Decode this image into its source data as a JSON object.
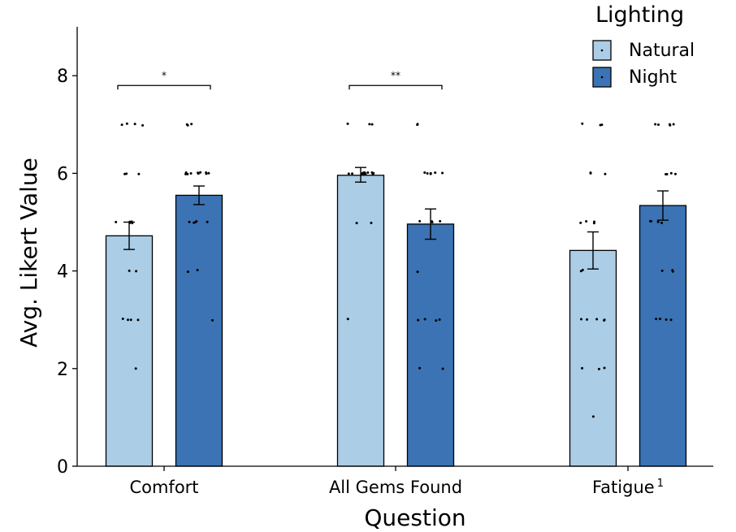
{
  "chart_data": {
    "type": "bar",
    "title": "",
    "xlabel": "Question",
    "ylabel": "Avg. Likert Value",
    "ylim": [
      0,
      9
    ],
    "yticks": [
      0,
      2,
      4,
      6,
      8
    ],
    "categories": [
      {
        "name": "Comfort",
        "sup": ""
      },
      {
        "name": "All Gems Found",
        "sup": ""
      },
      {
        "name": "Fatigue",
        "sup": "1"
      }
    ],
    "legend": {
      "title": "Lighting",
      "position": "top-right"
    },
    "series": [
      {
        "name": "Natural",
        "color": "#abcde6",
        "values": [
          4.72,
          5.96,
          4.42
        ],
        "errors": [
          [
            4.44,
            5.0
          ],
          [
            5.82,
            6.12
          ],
          [
            4.04,
            4.8
          ]
        ],
        "points": [
          [
            2,
            3,
            3,
            3,
            3,
            4,
            4,
            5,
            5,
            5,
            5,
            5,
            6,
            6,
            6,
            7,
            7,
            7,
            7
          ],
          [
            3,
            5,
            5,
            6,
            6,
            6,
            6,
            6,
            6,
            6,
            6,
            6,
            6,
            6,
            6,
            7,
            7,
            7
          ],
          [
            1,
            2,
            2,
            2,
            3,
            3,
            3,
            3,
            3,
            4,
            4,
            5,
            5,
            5,
            5,
            6,
            6,
            6,
            7,
            7,
            7
          ]
        ]
      },
      {
        "name": "Night",
        "color": "#3b73b4",
        "values": [
          5.55,
          4.96,
          5.34
        ],
        "errors": [
          [
            5.36,
            5.74
          ],
          [
            4.65,
            5.27
          ],
          [
            5.04,
            5.64
          ]
        ],
        "points": [
          [
            3,
            4,
            4,
            5,
            5,
            5,
            5,
            5,
            6,
            6,
            6,
            6,
            6,
            6,
            6,
            6,
            6,
            6,
            7,
            7,
            7
          ],
          [
            2,
            2,
            3,
            3,
            3,
            3,
            4,
            5,
            5,
            5,
            5,
            6,
            6,
            6,
            6,
            6,
            6,
            7,
            7
          ],
          [
            3,
            3,
            3,
            3,
            4,
            4,
            4,
            5,
            5,
            5,
            5,
            6,
            6,
            6,
            6,
            7,
            7,
            7,
            7,
            7
          ]
        ]
      }
    ],
    "significance": [
      {
        "category": "Comfort",
        "label": "*",
        "y": 7.8
      },
      {
        "category": "All Gems Found",
        "label": "**",
        "y": 7.8
      }
    ]
  }
}
